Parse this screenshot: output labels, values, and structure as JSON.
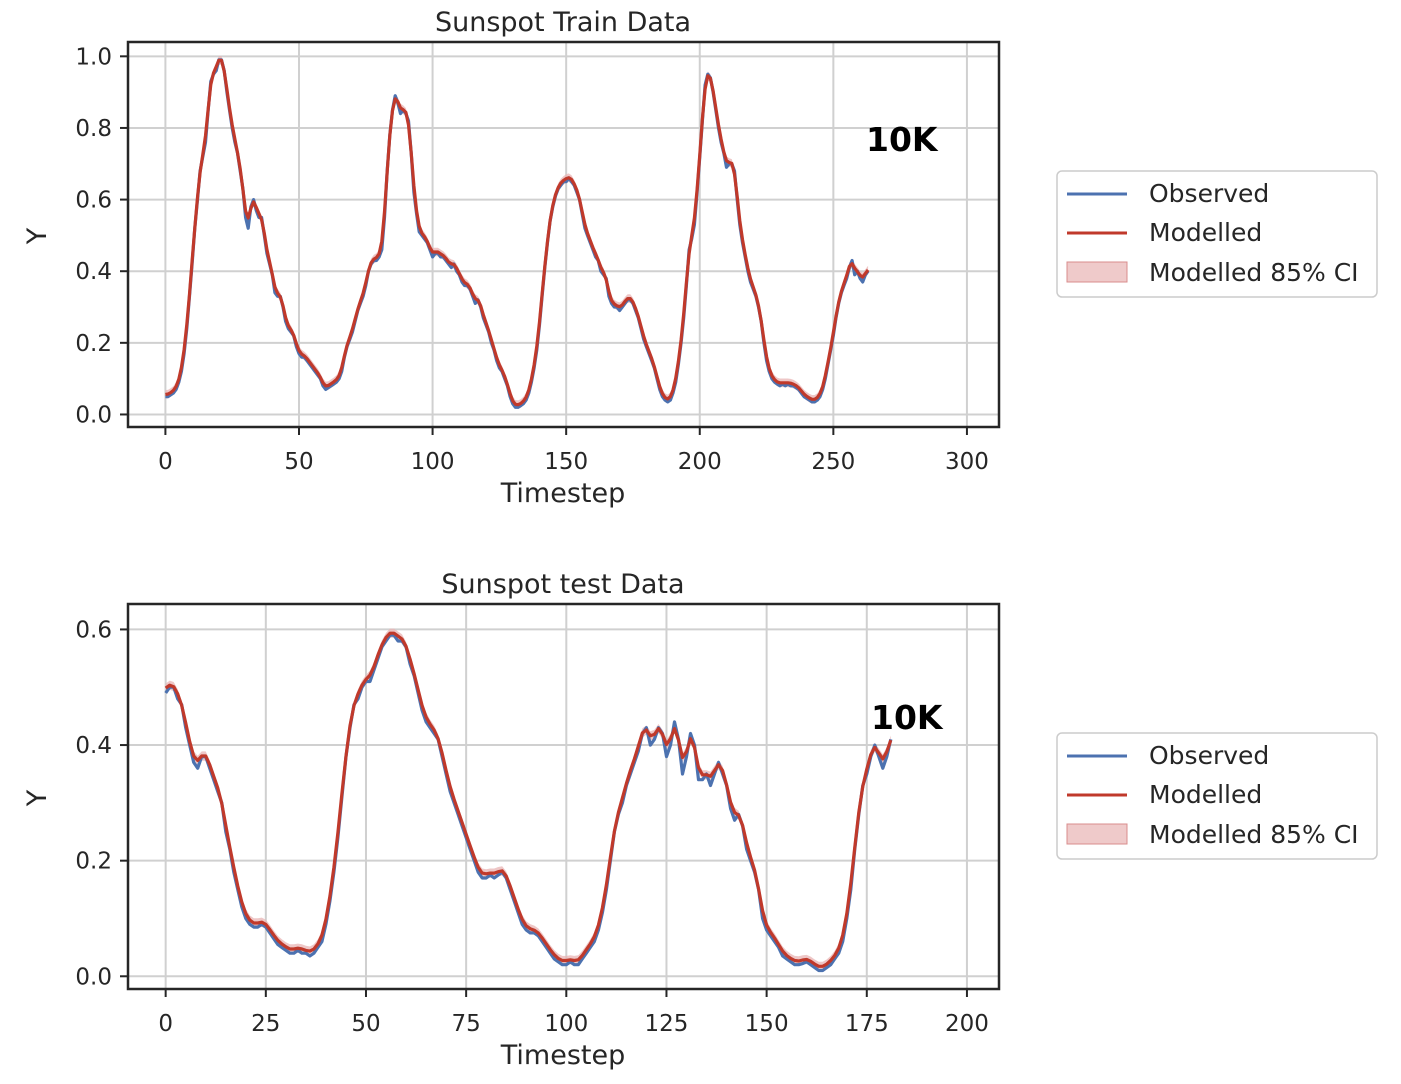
{
  "chart_data": [
    {
      "type": "line",
      "title": "Sunspot Train Data",
      "xlabel": "Timestep",
      "ylabel": "Y",
      "xlim": [
        -14,
        312
      ],
      "ylim": [
        -0.035,
        1.04
      ],
      "xticks": [
        0,
        50,
        100,
        150,
        200,
        250,
        300
      ],
      "xtick_labels": [
        "0",
        "50",
        "100",
        "150",
        "200",
        "250",
        "300"
      ],
      "yticks": [
        0.0,
        0.2,
        0.4,
        0.6,
        0.8,
        1.0
      ],
      "ytick_labels": [
        "0.0",
        "0.2",
        "0.4",
        "0.6",
        "0.8",
        "1.0"
      ],
      "grid": true,
      "legend_position": "right",
      "annotation": "10K",
      "legend": {
        "observed": "Observed",
        "modelled": "Modelled",
        "ci": "Modelled 85% CI"
      },
      "colors": {
        "observed": "#4c72b0",
        "modelled": "#c0392b",
        "ci": "#e8b4b4"
      },
      "ci_halfwidth": 0.012,
      "x_start": 0,
      "observed": [
        0.05,
        0.05,
        0.055,
        0.06,
        0.07,
        0.09,
        0.12,
        0.17,
        0.24,
        0.33,
        0.42,
        0.52,
        0.6,
        0.68,
        0.72,
        0.76,
        0.85,
        0.93,
        0.95,
        0.96,
        0.99,
        0.99,
        0.96,
        0.9,
        0.85,
        0.8,
        0.76,
        0.73,
        0.68,
        0.63,
        0.55,
        0.52,
        0.58,
        0.6,
        0.57,
        0.55,
        0.55,
        0.5,
        0.45,
        0.42,
        0.39,
        0.34,
        0.33,
        0.33,
        0.3,
        0.26,
        0.24,
        0.23,
        0.22,
        0.19,
        0.17,
        0.16,
        0.16,
        0.15,
        0.14,
        0.13,
        0.12,
        0.11,
        0.1,
        0.08,
        0.07,
        0.075,
        0.08,
        0.085,
        0.09,
        0.1,
        0.12,
        0.16,
        0.19,
        0.21,
        0.23,
        0.26,
        0.29,
        0.31,
        0.33,
        0.36,
        0.4,
        0.42,
        0.43,
        0.43,
        0.44,
        0.46,
        0.55,
        0.68,
        0.78,
        0.85,
        0.89,
        0.87,
        0.84,
        0.85,
        0.84,
        0.82,
        0.73,
        0.62,
        0.56,
        0.51,
        0.5,
        0.49,
        0.48,
        0.46,
        0.44,
        0.45,
        0.45,
        0.44,
        0.44,
        0.43,
        0.42,
        0.41,
        0.42,
        0.4,
        0.39,
        0.37,
        0.36,
        0.36,
        0.35,
        0.33,
        0.31,
        0.32,
        0.3,
        0.27,
        0.25,
        0.23,
        0.2,
        0.18,
        0.15,
        0.13,
        0.12,
        0.1,
        0.08,
        0.05,
        0.03,
        0.02,
        0.02,
        0.025,
        0.03,
        0.04,
        0.06,
        0.09,
        0.13,
        0.18,
        0.25,
        0.33,
        0.41,
        0.48,
        0.54,
        0.58,
        0.61,
        0.63,
        0.64,
        0.65,
        0.65,
        0.66,
        0.65,
        0.64,
        0.62,
        0.6,
        0.56,
        0.52,
        0.5,
        0.48,
        0.46,
        0.44,
        0.43,
        0.4,
        0.39,
        0.38,
        0.33,
        0.31,
        0.3,
        0.3,
        0.29,
        0.3,
        0.31,
        0.32,
        0.32,
        0.31,
        0.29,
        0.27,
        0.24,
        0.21,
        0.19,
        0.17,
        0.15,
        0.13,
        0.1,
        0.07,
        0.05,
        0.04,
        0.035,
        0.04,
        0.06,
        0.09,
        0.14,
        0.2,
        0.27,
        0.36,
        0.46,
        0.49,
        0.53,
        0.62,
        0.72,
        0.82,
        0.92,
        0.95,
        0.94,
        0.9,
        0.85,
        0.8,
        0.76,
        0.73,
        0.69,
        0.7,
        0.7,
        0.68,
        0.6,
        0.53,
        0.48,
        0.44,
        0.4,
        0.37,
        0.35,
        0.33,
        0.3,
        0.26,
        0.2,
        0.15,
        0.12,
        0.1,
        0.09,
        0.085,
        0.08,
        0.085,
        0.08,
        0.085,
        0.08,
        0.08,
        0.075,
        0.07,
        0.06,
        0.05,
        0.045,
        0.04,
        0.035,
        0.035,
        0.04,
        0.05,
        0.07,
        0.1,
        0.14,
        0.18,
        0.22,
        0.27,
        0.31,
        0.34,
        0.36,
        0.38,
        0.41,
        0.43,
        0.39,
        0.4,
        0.38,
        0.37,
        0.39,
        0.4
      ]
    },
    {
      "type": "line",
      "title": "Sunspot test Data",
      "xlabel": "Timestep",
      "ylabel": "Y",
      "xlim": [
        -9.4,
        208
      ],
      "ylim": [
        -0.022,
        0.644
      ],
      "xticks": [
        0,
        25,
        50,
        75,
        100,
        125,
        150,
        175,
        200
      ],
      "xtick_labels": [
        "0",
        "25",
        "50",
        "75",
        "100",
        "125",
        "150",
        "175",
        "200"
      ],
      "yticks": [
        0.0,
        0.2,
        0.4,
        0.6
      ],
      "ytick_labels": [
        "0.0",
        "0.2",
        "0.4",
        "0.6"
      ],
      "grid": true,
      "legend_position": "right",
      "annotation": "10K",
      "legend": {
        "observed": "Observed",
        "modelled": "Modelled",
        "ci": "Modelled 85% CI"
      },
      "colors": {
        "observed": "#4c72b0",
        "modelled": "#c0392b",
        "ci": "#e8b4b4"
      },
      "ci_halfwidth": 0.008,
      "x_start": 0,
      "observed": [
        0.49,
        0.5,
        0.5,
        0.48,
        0.47,
        0.43,
        0.4,
        0.37,
        0.36,
        0.38,
        0.38,
        0.36,
        0.34,
        0.32,
        0.3,
        0.25,
        0.22,
        0.18,
        0.15,
        0.12,
        0.1,
        0.09,
        0.085,
        0.085,
        0.09,
        0.085,
        0.075,
        0.065,
        0.055,
        0.05,
        0.045,
        0.04,
        0.04,
        0.045,
        0.04,
        0.04,
        0.035,
        0.04,
        0.05,
        0.06,
        0.09,
        0.13,
        0.18,
        0.24,
        0.31,
        0.38,
        0.43,
        0.47,
        0.48,
        0.5,
        0.51,
        0.51,
        0.53,
        0.55,
        0.57,
        0.58,
        0.59,
        0.59,
        0.58,
        0.58,
        0.57,
        0.54,
        0.52,
        0.49,
        0.46,
        0.44,
        0.43,
        0.42,
        0.41,
        0.38,
        0.35,
        0.32,
        0.3,
        0.28,
        0.26,
        0.24,
        0.22,
        0.2,
        0.18,
        0.17,
        0.17,
        0.175,
        0.17,
        0.175,
        0.18,
        0.17,
        0.15,
        0.13,
        0.11,
        0.09,
        0.08,
        0.075,
        0.075,
        0.07,
        0.06,
        0.05,
        0.04,
        0.03,
        0.025,
        0.02,
        0.02,
        0.025,
        0.02,
        0.02,
        0.03,
        0.04,
        0.05,
        0.06,
        0.08,
        0.11,
        0.15,
        0.2,
        0.25,
        0.28,
        0.3,
        0.33,
        0.35,
        0.37,
        0.39,
        0.42,
        0.43,
        0.4,
        0.41,
        0.43,
        0.42,
        0.38,
        0.4,
        0.44,
        0.41,
        0.35,
        0.38,
        0.42,
        0.4,
        0.34,
        0.34,
        0.35,
        0.33,
        0.35,
        0.37,
        0.35,
        0.33,
        0.29,
        0.27,
        0.28,
        0.26,
        0.22,
        0.2,
        0.18,
        0.15,
        0.1,
        0.08,
        0.07,
        0.06,
        0.05,
        0.035,
        0.03,
        0.025,
        0.02,
        0.02,
        0.022,
        0.025,
        0.02,
        0.015,
        0.01,
        0.01,
        0.015,
        0.02,
        0.03,
        0.04,
        0.06,
        0.1,
        0.15,
        0.22,
        0.28,
        0.33,
        0.35,
        0.38,
        0.4,
        0.38,
        0.36,
        0.38,
        0.41
      ]
    }
  ]
}
